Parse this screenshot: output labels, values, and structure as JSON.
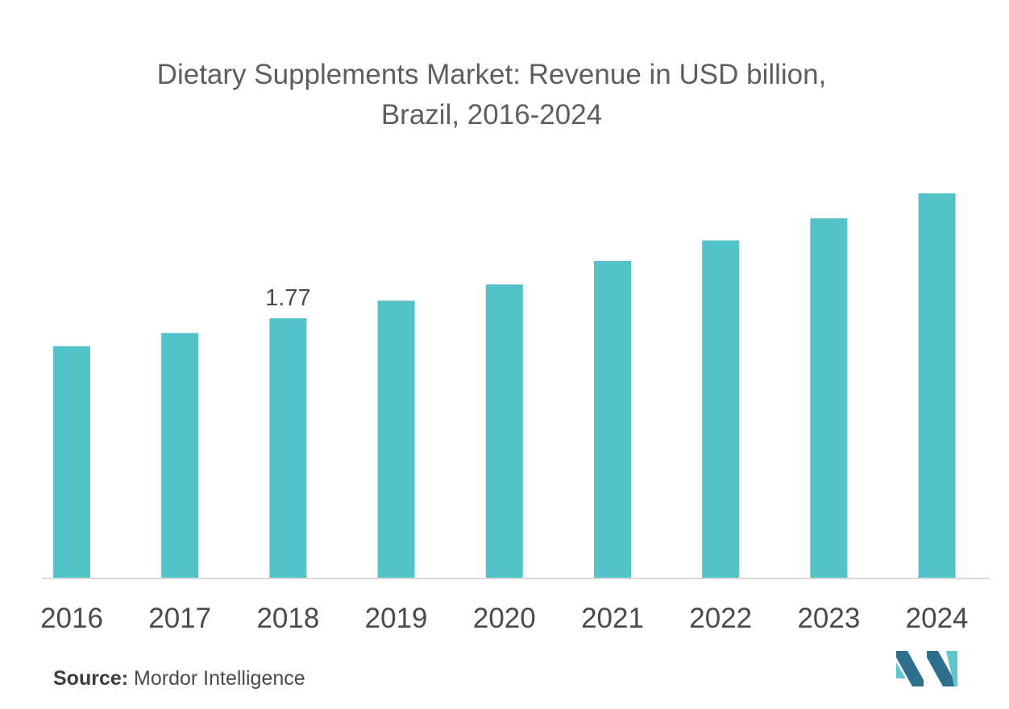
{
  "title_line1": "Dietary Supplements Market: Revenue in USD billion,",
  "title_line2": "Brazil, 2016-2024",
  "source_label": "Source:",
  "source_value": "Mordor Intelligence",
  "colors": {
    "bar": "#52c3c9",
    "axis": "#d9d9d9",
    "tick_text": "#4a4a4a",
    "logo_dark": "#2e6f8e",
    "logo_light": "#5fc6cc"
  },
  "chart_data": {
    "type": "bar",
    "title": "Dietary Supplements Market: Revenue in USD billion, Brazil, 2016-2024",
    "categories": [
      "2016",
      "2017",
      "2018",
      "2019",
      "2020",
      "2021",
      "2022",
      "2023",
      "2024"
    ],
    "values": [
      1.58,
      1.67,
      1.77,
      1.89,
      2.0,
      2.16,
      2.3,
      2.45,
      2.62
    ],
    "data_labels": [
      {
        "category": "2018",
        "text": "1.77"
      }
    ],
    "ylim": [
      0,
      3.4
    ],
    "grid": false,
    "legend": "none"
  }
}
